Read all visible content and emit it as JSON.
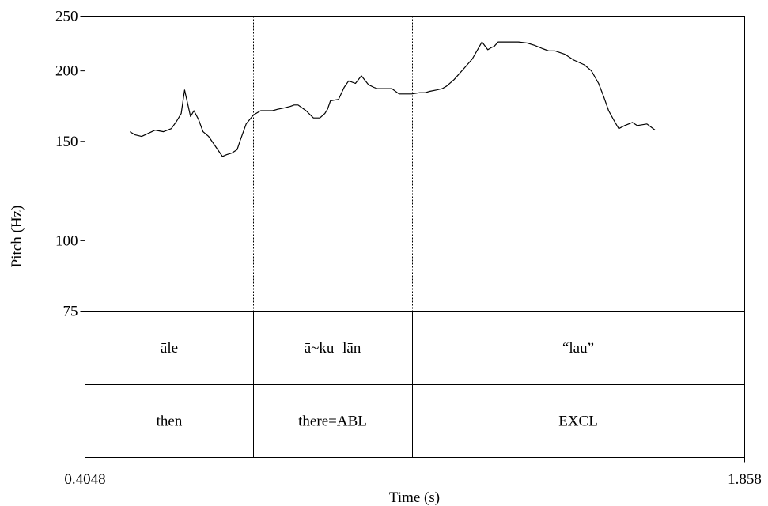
{
  "chart_data": {
    "type": "line",
    "xlabel": "Time (s)",
    "ylabel": "Pitch (Hz)",
    "xlim": [
      0.4048,
      1.858
    ],
    "ylim": [
      75,
      250
    ],
    "x_tick_labels": [
      "0.4048",
      "1.858"
    ],
    "y_ticks": [
      {
        "value": 250,
        "label": "250"
      },
      {
        "value": 200,
        "label": "200"
      },
      {
        "value": 150,
        "label": "150"
      },
      {
        "value": 100,
        "label": "100"
      },
      {
        "value": 75,
        "label": "75"
      }
    ],
    "grid": false,
    "boundaries": [
      0.7759,
      1.1245
    ],
    "series": [
      {
        "x": [
          0.5037,
          0.5151,
          0.5295,
          0.5445,
          0.5593,
          0.5776,
          0.5949,
          0.6069,
          0.6167,
          0.6242,
          0.6373,
          0.6448,
          0.6548,
          0.6648,
          0.6772,
          0.7074,
          0.7166,
          0.7282,
          0.7399,
          0.746,
          0.7598,
          0.7757,
          0.7918,
          0.8031,
          0.818,
          0.8291,
          0.844,
          0.8571,
          0.8654,
          0.8743,
          0.8917,
          0.9081,
          0.9222,
          0.9331,
          0.9391,
          0.9455,
          0.9632,
          0.9757,
          0.9856,
          1.0006,
          1.0136,
          1.0295,
          1.0411,
          1.0486,
          1.0634,
          1.0808,
          1.0967,
          1.1166,
          1.1244,
          1.1418,
          1.1542,
          1.1642,
          1.179,
          1.1917,
          1.2017,
          1.2179,
          1.2398,
          1.258,
          1.2794,
          1.292,
          1.3,
          1.3061,
          1.3149,
          1.3301,
          1.3421,
          1.3595,
          1.3792,
          1.3948,
          1.4126,
          1.4268,
          1.4405,
          1.4621,
          1.4817,
          1.5048,
          1.5203,
          1.5361,
          1.5475,
          1.5583,
          1.5706,
          1.5806,
          1.5936,
          1.6106,
          1.6212,
          1.6427,
          1.6608
        ],
        "y": [
          156,
          154,
          153,
          155,
          157,
          156,
          158,
          163,
          168,
          185,
          166,
          170,
          164,
          156,
          153,
          141,
          142,
          143,
          145,
          150,
          161,
          167,
          170,
          170,
          170,
          171,
          172,
          173,
          174,
          174,
          170,
          165,
          165,
          168,
          171,
          177,
          178,
          187,
          192,
          190,
          196,
          189,
          187,
          186,
          186,
          186,
          182,
          182,
          182,
          183,
          183,
          184,
          185,
          186,
          188,
          193,
          202,
          210,
          225,
          218,
          220,
          221,
          225,
          225,
          225,
          225,
          224,
          222,
          219,
          217,
          217,
          214,
          209,
          205,
          200,
          190,
          180,
          170,
          163,
          158,
          160,
          162,
          160,
          161,
          157
        ]
      }
    ],
    "tiers": [
      {
        "segments": [
          "āle",
          "ā~ku=lān",
          "“lau”"
        ]
      },
      {
        "segments": [
          "then",
          "there=ABL",
          "EXCL"
        ]
      }
    ]
  }
}
